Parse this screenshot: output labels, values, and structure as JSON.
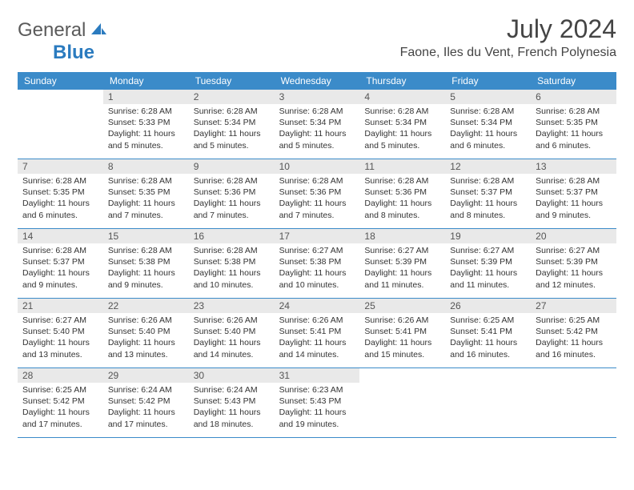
{
  "logo": {
    "word1": "General",
    "word2": "Blue"
  },
  "title": "July 2024",
  "subtitle": "Faone, Iles du Vent, French Polynesia",
  "colors": {
    "header_bg": "#3b8bc9",
    "header_text": "#ffffff",
    "daynum_bg": "#e9e9e9",
    "week_border": "#3b8bc9",
    "logo_gray": "#5a5a5a",
    "logo_blue": "#2b7bbf"
  },
  "day_names": [
    "Sunday",
    "Monday",
    "Tuesday",
    "Wednesday",
    "Thursday",
    "Friday",
    "Saturday"
  ],
  "start_offset": 1,
  "days": [
    {
      "n": 1,
      "sunrise": "6:28 AM",
      "sunset": "5:33 PM",
      "daylight": "11 hours and 5 minutes."
    },
    {
      "n": 2,
      "sunrise": "6:28 AM",
      "sunset": "5:34 PM",
      "daylight": "11 hours and 5 minutes."
    },
    {
      "n": 3,
      "sunrise": "6:28 AM",
      "sunset": "5:34 PM",
      "daylight": "11 hours and 5 minutes."
    },
    {
      "n": 4,
      "sunrise": "6:28 AM",
      "sunset": "5:34 PM",
      "daylight": "11 hours and 5 minutes."
    },
    {
      "n": 5,
      "sunrise": "6:28 AM",
      "sunset": "5:34 PM",
      "daylight": "11 hours and 6 minutes."
    },
    {
      "n": 6,
      "sunrise": "6:28 AM",
      "sunset": "5:35 PM",
      "daylight": "11 hours and 6 minutes."
    },
    {
      "n": 7,
      "sunrise": "6:28 AM",
      "sunset": "5:35 PM",
      "daylight": "11 hours and 6 minutes."
    },
    {
      "n": 8,
      "sunrise": "6:28 AM",
      "sunset": "5:35 PM",
      "daylight": "11 hours and 7 minutes."
    },
    {
      "n": 9,
      "sunrise": "6:28 AM",
      "sunset": "5:36 PM",
      "daylight": "11 hours and 7 minutes."
    },
    {
      "n": 10,
      "sunrise": "6:28 AM",
      "sunset": "5:36 PM",
      "daylight": "11 hours and 7 minutes."
    },
    {
      "n": 11,
      "sunrise": "6:28 AM",
      "sunset": "5:36 PM",
      "daylight": "11 hours and 8 minutes."
    },
    {
      "n": 12,
      "sunrise": "6:28 AM",
      "sunset": "5:37 PM",
      "daylight": "11 hours and 8 minutes."
    },
    {
      "n": 13,
      "sunrise": "6:28 AM",
      "sunset": "5:37 PM",
      "daylight": "11 hours and 9 minutes."
    },
    {
      "n": 14,
      "sunrise": "6:28 AM",
      "sunset": "5:37 PM",
      "daylight": "11 hours and 9 minutes."
    },
    {
      "n": 15,
      "sunrise": "6:28 AM",
      "sunset": "5:38 PM",
      "daylight": "11 hours and 9 minutes."
    },
    {
      "n": 16,
      "sunrise": "6:28 AM",
      "sunset": "5:38 PM",
      "daylight": "11 hours and 10 minutes."
    },
    {
      "n": 17,
      "sunrise": "6:27 AM",
      "sunset": "5:38 PM",
      "daylight": "11 hours and 10 minutes."
    },
    {
      "n": 18,
      "sunrise": "6:27 AM",
      "sunset": "5:39 PM",
      "daylight": "11 hours and 11 minutes."
    },
    {
      "n": 19,
      "sunrise": "6:27 AM",
      "sunset": "5:39 PM",
      "daylight": "11 hours and 11 minutes."
    },
    {
      "n": 20,
      "sunrise": "6:27 AM",
      "sunset": "5:39 PM",
      "daylight": "11 hours and 12 minutes."
    },
    {
      "n": 21,
      "sunrise": "6:27 AM",
      "sunset": "5:40 PM",
      "daylight": "11 hours and 13 minutes."
    },
    {
      "n": 22,
      "sunrise": "6:26 AM",
      "sunset": "5:40 PM",
      "daylight": "11 hours and 13 minutes."
    },
    {
      "n": 23,
      "sunrise": "6:26 AM",
      "sunset": "5:40 PM",
      "daylight": "11 hours and 14 minutes."
    },
    {
      "n": 24,
      "sunrise": "6:26 AM",
      "sunset": "5:41 PM",
      "daylight": "11 hours and 14 minutes."
    },
    {
      "n": 25,
      "sunrise": "6:26 AM",
      "sunset": "5:41 PM",
      "daylight": "11 hours and 15 minutes."
    },
    {
      "n": 26,
      "sunrise": "6:25 AM",
      "sunset": "5:41 PM",
      "daylight": "11 hours and 16 minutes."
    },
    {
      "n": 27,
      "sunrise": "6:25 AM",
      "sunset": "5:42 PM",
      "daylight": "11 hours and 16 minutes."
    },
    {
      "n": 28,
      "sunrise": "6:25 AM",
      "sunset": "5:42 PM",
      "daylight": "11 hours and 17 minutes."
    },
    {
      "n": 29,
      "sunrise": "6:24 AM",
      "sunset": "5:42 PM",
      "daylight": "11 hours and 17 minutes."
    },
    {
      "n": 30,
      "sunrise": "6:24 AM",
      "sunset": "5:43 PM",
      "daylight": "11 hours and 18 minutes."
    },
    {
      "n": 31,
      "sunrise": "6:23 AM",
      "sunset": "5:43 PM",
      "daylight": "11 hours and 19 minutes."
    }
  ],
  "labels": {
    "sunrise": "Sunrise:",
    "sunset": "Sunset:",
    "daylight": "Daylight:"
  }
}
